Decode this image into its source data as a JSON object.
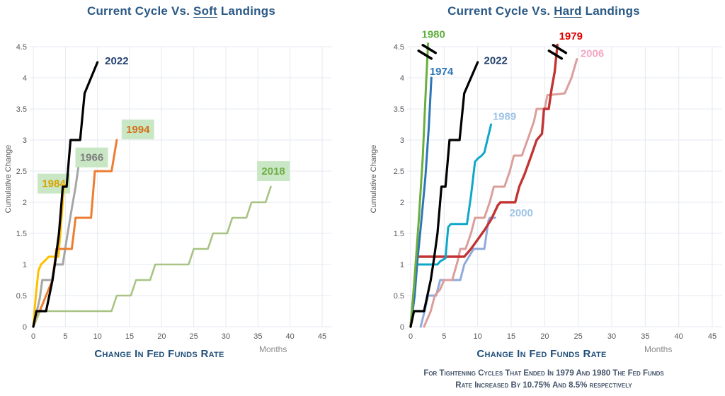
{
  "page": {
    "y_axis_label": "Cumulative Change",
    "x_axis_label": "Change In Fed Funds Rate",
    "x_unit_label": "Months"
  },
  "chart_data": [
    {
      "type": "line",
      "title_prefix": "Current Cycle Vs. ",
      "title_emph": "Soft",
      "title_suffix": " Landings",
      "xlabel": "Change In Fed Funds Rate",
      "ylabel": "Cumulative Change",
      "x_unit": "Months",
      "xlim": [
        0,
        45
      ],
      "ylim": [
        0,
        4.5
      ],
      "x_ticks": [
        0,
        5,
        10,
        15,
        20,
        25,
        30,
        35,
        40,
        45
      ],
      "y_ticks": [
        "0",
        "0.5",
        "1",
        "1.5",
        "2",
        "2.5",
        "3",
        "3.5",
        "4",
        "4.5"
      ],
      "grid": true,
      "legend": "inline-labels",
      "label_bg_color": "#c9e7c4",
      "series": [
        {
          "name": "1984",
          "color": "#ffc000",
          "width": 3,
          "label": {
            "text": "1984",
            "x": 3.2,
            "y": 2.3,
            "color": "#d9a400",
            "bg": true
          },
          "points": [
            [
              0,
              0
            ],
            [
              0.4,
              0.5
            ],
            [
              0.8,
              0.9
            ],
            [
              1.2,
              1.0
            ],
            [
              2,
              1.08
            ],
            [
              2.4,
              1.125
            ],
            [
              3.9,
              1.125
            ],
            [
              4.3,
              1.6
            ],
            [
              4.8,
              2.3
            ]
          ]
        },
        {
          "name": "1966",
          "color": "#a6a6a6",
          "width": 3,
          "label": {
            "text": "1966",
            "x": 9.1,
            "y": 2.72,
            "color": "#7f7f7f",
            "bg": true
          },
          "points": [
            [
              0,
              0
            ],
            [
              1,
              0.45
            ],
            [
              1.4,
              0.75
            ],
            [
              2.9,
              0.75
            ],
            [
              3.3,
              1.0
            ],
            [
              4.6,
              1.0
            ],
            [
              5.2,
              1.4
            ],
            [
              6,
              1.9
            ],
            [
              6.6,
              2.25
            ],
            [
              7,
              2.55
            ]
          ]
        },
        {
          "name": "1994",
          "color": "#ed7d31",
          "width": 3,
          "label": {
            "text": "1994",
            "x": 16.3,
            "y": 3.17,
            "color": "#d2711c",
            "bg": true
          },
          "points": [
            [
              0,
              0
            ],
            [
              1,
              0.25
            ],
            [
              2,
              0.5
            ],
            [
              3,
              0.75
            ],
            [
              3.6,
              1.25
            ],
            [
              6,
              1.25
            ],
            [
              6.6,
              1.75
            ],
            [
              9,
              1.75
            ],
            [
              9.6,
              2.5
            ],
            [
              12.2,
              2.5
            ],
            [
              13,
              3.0
            ]
          ]
        },
        {
          "name": "2018",
          "color": "#a8c384",
          "width": 2.6,
          "label": {
            "text": "2018",
            "x": 37.4,
            "y": 2.5,
            "color": "#70ad47",
            "bg": true
          },
          "points": [
            [
              0,
              0
            ],
            [
              1,
              0.25
            ],
            [
              12.2,
              0.25
            ],
            [
              13,
              0.5
            ],
            [
              15.2,
              0.5
            ],
            [
              16,
              0.75
            ],
            [
              18.2,
              0.75
            ],
            [
              19,
              1.0
            ],
            [
              24.2,
              1.0
            ],
            [
              25,
              1.25
            ],
            [
              27.2,
              1.25
            ],
            [
              28,
              1.5
            ],
            [
              30.2,
              1.5
            ],
            [
              31,
              1.75
            ],
            [
              33.2,
              1.75
            ],
            [
              34,
              2.0
            ],
            [
              36.2,
              2.0
            ],
            [
              37,
              2.25
            ]
          ]
        },
        {
          "name": "2022",
          "color": "#000000",
          "width": 3.2,
          "label": {
            "text": "2022",
            "x": 13,
            "y": 4.27,
            "color": "#24426e",
            "bg": false
          },
          "points": [
            [
              0,
              0
            ],
            [
              0.5,
              0.25
            ],
            [
              2,
              0.25
            ],
            [
              3,
              0.75
            ],
            [
              3.5,
              1.1
            ],
            [
              4,
              1.5
            ],
            [
              4.6,
              2.25
            ],
            [
              5.2,
              2.25
            ],
            [
              5.8,
              3.0
            ],
            [
              7.3,
              3.0
            ],
            [
              8,
              3.75
            ],
            [
              10,
              4.25
            ]
          ]
        }
      ],
      "breaks": []
    },
    {
      "type": "line",
      "title_prefix": "Current Cycle Vs. ",
      "title_emph": "Hard",
      "title_suffix": " Landings",
      "xlabel": "Change In Fed Funds Rate",
      "ylabel": "Cumulative Change",
      "x_unit": "Months",
      "xlim": [
        0,
        45
      ],
      "ylim": [
        0,
        4.5
      ],
      "x_ticks": [
        0,
        5,
        10,
        15,
        20,
        25,
        30,
        35,
        40,
        45
      ],
      "y_ticks": [
        "0",
        "0.5",
        "1",
        "1.5",
        "2",
        "2.5",
        "3",
        "3.5",
        "4",
        "4.5"
      ],
      "grid": true,
      "legend": "inline-labels",
      "footnote_line1": "For Tightening Cycles That Ended In 1979 And 1980 The Fed Funds",
      "footnote_line2": "Rate Increased By 10.75% And 8.5% respectively",
      "series": [
        {
          "name": "2000",
          "color": "#8faadc",
          "width": 3,
          "label": {
            "text": "2000",
            "x": 16.5,
            "y": 1.83,
            "color": "#9dc3e6",
            "bg": false
          },
          "points": [
            [
              1.5,
              0
            ],
            [
              2.2,
              0.3
            ],
            [
              2.6,
              0.5
            ],
            [
              3.8,
              0.5
            ],
            [
              4.4,
              0.75
            ],
            [
              7.4,
              0.75
            ],
            [
              8,
              1.0
            ],
            [
              9.4,
              1.25
            ],
            [
              11,
              1.25
            ],
            [
              11.6,
              1.7
            ],
            [
              11.8,
              1.75
            ],
            [
              12.6,
              1.75
            ]
          ]
        },
        {
          "name": "2006",
          "color": "#db9e9b",
          "width": 3,
          "label": {
            "text": "2006",
            "x": 27.1,
            "y": 4.39,
            "color": "#f4a7c3",
            "bg": false
          },
          "points": [
            [
              2,
              0
            ],
            [
              3,
              0.25
            ],
            [
              3.6,
              0.5
            ],
            [
              4.4,
              0.6
            ],
            [
              5,
              0.75
            ],
            [
              6.2,
              0.75
            ],
            [
              7,
              1.05
            ],
            [
              7.4,
              1.25
            ],
            [
              8.2,
              1.25
            ],
            [
              9,
              1.5
            ],
            [
              9.6,
              1.75
            ],
            [
              11,
              1.75
            ],
            [
              11.8,
              2.0
            ],
            [
              12.4,
              2.25
            ],
            [
              14,
              2.25
            ],
            [
              14.8,
              2.5
            ],
            [
              15.4,
              2.75
            ],
            [
              16.6,
              2.75
            ],
            [
              17.6,
              3.05
            ],
            [
              18.4,
              3.3
            ],
            [
              18.8,
              3.5
            ],
            [
              20,
              3.5
            ],
            [
              20.4,
              3.72
            ],
            [
              23,
              3.75
            ],
            [
              24,
              4.0
            ],
            [
              24.8,
              4.3
            ]
          ]
        },
        {
          "name": "1979",
          "color": "#c23432",
          "width": 3.4,
          "label": {
            "text": "1979",
            "x": 23.9,
            "y": 4.67,
            "color": "#e00000",
            "bg": false
          },
          "points": [
            [
              0,
              0
            ],
            [
              0.5,
              0.6
            ],
            [
              0.9,
              1.125
            ],
            [
              8,
              1.125
            ],
            [
              9,
              1.25
            ],
            [
              10,
              1.4
            ],
            [
              11,
              1.55
            ],
            [
              12,
              1.72
            ],
            [
              13,
              1.95
            ],
            [
              13.4,
              2.0
            ],
            [
              15.6,
              2.0
            ],
            [
              16.2,
              2.25
            ],
            [
              17,
              2.45
            ],
            [
              18,
              2.75
            ],
            [
              18.8,
              3.0
            ],
            [
              19.6,
              3.1
            ],
            [
              19.9,
              3.5
            ],
            [
              20.6,
              3.5
            ],
            [
              21,
              3.8
            ],
            [
              21.5,
              4.1
            ],
            [
              21.9,
              4.53
            ]
          ]
        },
        {
          "name": "1989",
          "color": "#0fa7c9",
          "width": 3,
          "label": {
            "text": "1989",
            "x": 14.0,
            "y": 3.38,
            "color": "#9dc3e6",
            "bg": false
          },
          "points": [
            [
              0,
              0
            ],
            [
              0.8,
              0.95
            ],
            [
              1,
              1.0
            ],
            [
              4,
              1.0
            ],
            [
              4.4,
              1.05
            ],
            [
              5.2,
              1.1
            ],
            [
              5.6,
              1.6
            ],
            [
              6,
              1.65
            ],
            [
              8.4,
              1.65
            ],
            [
              9,
              2.1
            ],
            [
              9.6,
              2.65
            ],
            [
              10,
              2.7
            ],
            [
              10.6,
              2.75
            ],
            [
              11,
              2.8
            ],
            [
              12,
              3.25
            ]
          ]
        },
        {
          "name": "1974",
          "color": "#2e75b6",
          "width": 3,
          "label": {
            "text": "1974",
            "x": 4.6,
            "y": 4.1,
            "color": "#2e75b6",
            "bg": false
          },
          "points": [
            [
              0,
              0
            ],
            [
              0.6,
              0.5
            ],
            [
              1,
              1.05
            ],
            [
              1.6,
              1.7
            ],
            [
              2.2,
              2.4
            ],
            [
              2.7,
              3.2
            ],
            [
              3.1,
              4.0
            ]
          ]
        },
        {
          "name": "1980",
          "color": "#6aae3e",
          "width": 3,
          "label": {
            "text": "1980",
            "x": 3.4,
            "y": 4.7,
            "color": "#5fae3b",
            "bg": false
          },
          "points": [
            [
              0,
              0
            ],
            [
              0.6,
              0.8
            ],
            [
              1.2,
              1.7
            ],
            [
              1.8,
              2.7
            ],
            [
              2.3,
              3.9
            ],
            [
              2.6,
              4.55
            ]
          ]
        },
        {
          "name": "2022",
          "color": "#000000",
          "width": 3.2,
          "label": {
            "text": "2022",
            "x": 12.7,
            "y": 4.28,
            "color": "#24426e",
            "bg": false
          },
          "points": [
            [
              0,
              0
            ],
            [
              0.5,
              0.25
            ],
            [
              2,
              0.25
            ],
            [
              3,
              0.75
            ],
            [
              3.5,
              1.1
            ],
            [
              4,
              1.5
            ],
            [
              4.6,
              2.25
            ],
            [
              5.2,
              2.25
            ],
            [
              5.8,
              3.0
            ],
            [
              7.3,
              3.0
            ],
            [
              8,
              3.75
            ],
            [
              10,
              4.25
            ]
          ]
        }
      ],
      "breaks": [
        {
          "x": 2.45,
          "y": 4.4
        },
        {
          "x": 21.9,
          "y": 4.4
        }
      ]
    }
  ]
}
